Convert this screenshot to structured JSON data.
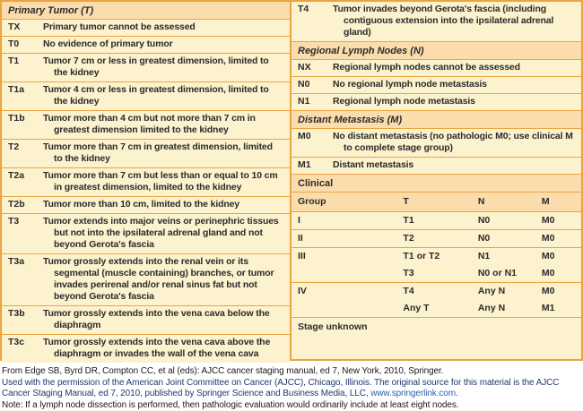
{
  "colors": {
    "border_orange": "#ECA440",
    "section_header_bg": "#FADCAD",
    "row_bg": "#FDF2CE",
    "table_text": "#2B2B2B",
    "citation_navy": "#20386E",
    "link_blue": "#2B5FAE"
  },
  "left": {
    "section": "Primary Tumor (T)",
    "rows": [
      {
        "code": "TX",
        "text": "Primary tumor cannot be assessed"
      },
      {
        "code": "T0",
        "text": "No evidence of primary tumor"
      },
      {
        "code": "T1",
        "text": "Tumor 7 cm or less in greatest dimension, limited to the kidney"
      },
      {
        "code": "T1a",
        "text": "Tumor 4 cm or less in greatest dimension, limited to the kidney"
      },
      {
        "code": "T1b",
        "text": "Tumor more than 4 cm but not more than 7 cm in greatest dimension limited to the kidney"
      },
      {
        "code": "T2",
        "text": "Tumor more than 7 cm in greatest dimension, limited to the kidney"
      },
      {
        "code": "T2a",
        "text": "Tumor more than 7 cm but less than or equal to 10 cm in greatest dimension, limited to the kidney"
      },
      {
        "code": "T2b",
        "text": "Tumor more than 10 cm, limited to the kidney"
      },
      {
        "code": "T3",
        "text": "Tumor extends into major veins or perinephric tissues but not into the ipsilateral adrenal gland and not beyond Gerota's fascia"
      },
      {
        "code": "T3a",
        "text": "Tumor grossly extends into the renal vein or its segmental (muscle containing) branches, or tumor invades perirenal and/or renal sinus fat but not beyond Gerota's fascia"
      },
      {
        "code": "T3b",
        "text": "Tumor grossly extends into the vena cava below the diaphragm"
      },
      {
        "code": "T3c",
        "text": "Tumor grossly extends into the vena cava above the diaphragm or invades the wall of the vena cava"
      }
    ]
  },
  "right": {
    "t4": {
      "code": "T4",
      "text": "Tumor invades beyond Gerota's fascia (including contiguous extension into the ipsilateral adrenal gland)"
    },
    "n_section": "Regional Lymph Nodes (N)",
    "n_rows": [
      {
        "code": "NX",
        "text": "Regional lymph nodes cannot be assessed"
      },
      {
        "code": "N0",
        "text": "No regional lymph node metastasis"
      },
      {
        "code": "N1",
        "text": "Regional lymph node metastasis"
      }
    ],
    "m_section": "Distant Metastasis (M)",
    "m_rows": [
      {
        "code": "M0",
        "text": "No distant metastasis (no pathologic M0; use clinical M to complete stage group)"
      },
      {
        "code": "M1",
        "text": "Distant metastasis"
      }
    ],
    "clinical_label": "Clinical"
  },
  "clinical": {
    "headers": {
      "group": "Group",
      "t": "T",
      "n": "N",
      "m": "M"
    },
    "rows": [
      {
        "group": "I",
        "t": "T1",
        "n": "N0",
        "m": "M0"
      },
      {
        "group": "II",
        "t": "T2",
        "n": "N0",
        "m": "M0"
      },
      {
        "group": "III",
        "t": "T1 or T2",
        "n": "N1",
        "m": "M0"
      },
      {
        "group": "",
        "t": "T3",
        "n": "N0 or N1",
        "m": "M0"
      },
      {
        "group": "IV",
        "t": "T4",
        "n": "Any N",
        "m": "M0"
      },
      {
        "group": "",
        "t": "Any T",
        "n": "Any N",
        "m": "M1"
      }
    ],
    "stage_unknown": "Stage unknown"
  },
  "footer": {
    "line1": "From Edge SB, Byrd DR, Compton CC, et al (eds): AJCC cancer staging manual, ed 7, New York, 2010, Springer.",
    "line2": "Used with the permission of the American Joint Committee on Cancer (AJCC), Chicago, Illinois. The original source for this material is the AJCC",
    "line3_prefix": "Cancer Staging Manual, ed 7, 2010, published by Springer Science and Business Media, LLC, ",
    "line3_link": "www.springerlink.com",
    "line3_suffix": ".",
    "line4": "Note: If a lymph node dissection is performed, then pathologic evaluation would ordinarily include at least eight nodes."
  }
}
